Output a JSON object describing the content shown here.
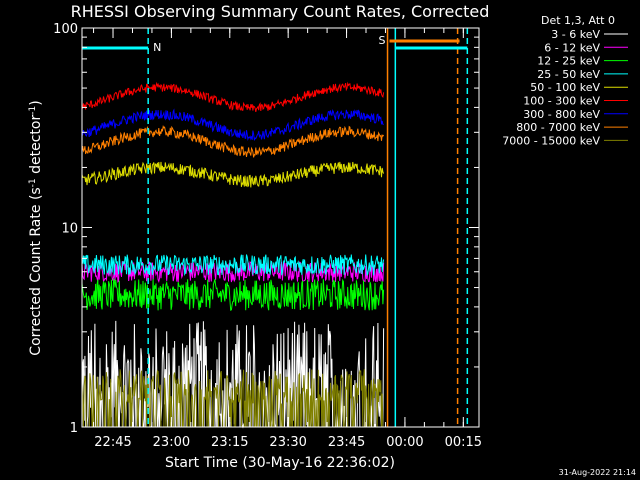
{
  "chart_data": {
    "type": "line",
    "title": "RHESSI Observing Summary Count Rates, Corrected",
    "xlabel": "Start Time (30-May-16 22:36:02)",
    "ylabel": "Corrected Count Rate (s",
    "ylabel_sup1": "-1",
    "ylabel_mid": " detector",
    "ylabel_sup2": "-1",
    "ylabel_end": ")",
    "y_scale": "log",
    "ylim": [
      1,
      100
    ],
    "y_tick_labels": [
      "1",
      "10",
      "100"
    ],
    "x_range_minutes": [
      0,
      102
    ],
    "x_ticks": [
      {
        "minute": 7.97,
        "label": "22:45"
      },
      {
        "minute": 22.97,
        "label": "23:00"
      },
      {
        "minute": 37.97,
        "label": "23:15"
      },
      {
        "minute": 52.97,
        "label": "23:30"
      },
      {
        "minute": 67.97,
        "label": "23:45"
      },
      {
        "minute": 82.97,
        "label": "00:00"
      },
      {
        "minute": 97.97,
        "label": "00:15"
      }
    ],
    "legend_title": "Det 1,3, Att 0",
    "legend_placement": "top-right outside",
    "series": [
      {
        "name": "3 - 6 keV",
        "color": "#ffffff",
        "base": 1.7,
        "amp": 0.0,
        "noise": 0.7,
        "sparse": true
      },
      {
        "name": "6 - 12 keV",
        "color": "#ff00ff",
        "base": 6.0,
        "amp": 0.0,
        "noise": 0.12
      },
      {
        "name": "12 - 25 keV",
        "color": "#00ff00",
        "base": 4.6,
        "amp": 0.0,
        "noise": 0.18
      },
      {
        "name": "25 - 50 keV",
        "color": "#00ffff",
        "base": 6.5,
        "amp": 0.0,
        "noise": 0.12
      },
      {
        "name": "50 - 100 keV",
        "color": "#dddd00",
        "base": 18.5,
        "amp": 0.08,
        "noise": 0.07
      },
      {
        "name": "100 - 300 keV",
        "color": "#ff0000",
        "base": 45,
        "amp": 0.12,
        "noise": 0.05
      },
      {
        "name": "300 - 800 keV",
        "color": "#0000ff",
        "base": 33,
        "amp": 0.12,
        "noise": 0.06
      },
      {
        "name": "800 - 7000 keV",
        "color": "#ff8000",
        "base": 27,
        "amp": 0.12,
        "noise": 0.06
      },
      {
        "name": "7000 - 15000 keV",
        "color": "#808000",
        "base": 1.6,
        "amp": 0.0,
        "noise": 0.2,
        "sparse": true
      }
    ],
    "data_end_minute": 77.5,
    "night_marker": {
      "label": "N",
      "color": "#00ffff",
      "start_minute": 0,
      "end_minute": 17
    },
    "saa_marker": {
      "label": "S",
      "color": "#ff8000",
      "start_minute": 79,
      "end_minute": 97
    },
    "annotations_vertical": [
      {
        "minute": 17,
        "color": "#00ffff",
        "style": "dashed"
      },
      {
        "minute": 78.5,
        "color": "#ff8000",
        "style": "solid"
      },
      {
        "minute": 80.5,
        "color": "#00ffff",
        "style": "solid"
      },
      {
        "minute": 96.5,
        "color": "#ff8000",
        "style": "dashed"
      },
      {
        "minute": 99,
        "color": "#00ffff",
        "style": "dashed"
      }
    ],
    "grid": false,
    "footer_date": "31-Aug-2022 21:14"
  }
}
